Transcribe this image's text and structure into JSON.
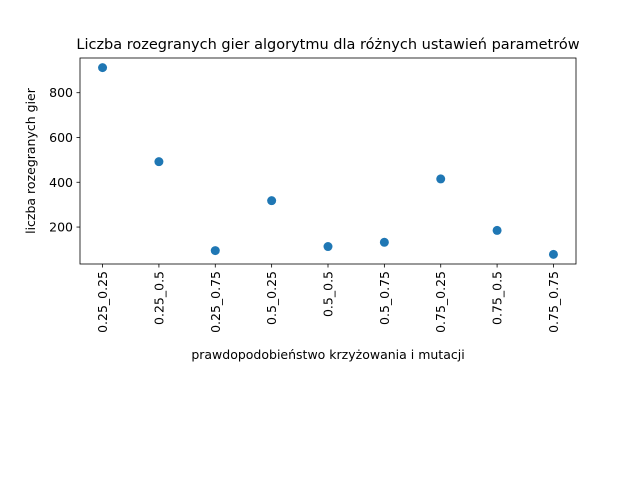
{
  "chart_data": {
    "type": "scatter",
    "title": "Liczba rozegranych gier algorytmu dla różnych ustawień parametrów",
    "xlabel": "prawdopodobieństwo krzyżowania i mutacji",
    "ylabel": "liczba rozegranych gier",
    "categories": [
      "0.25_0.25",
      "0.25_0.5",
      "0.25_0.75",
      "0.5_0.25",
      "0.5_0.5",
      "0.5_0.75",
      "0.75_0.25",
      "0.75_0.5",
      "0.75_0.75"
    ],
    "values": [
      912,
      492,
      95,
      318,
      113,
      132,
      415,
      185,
      78
    ],
    "yticks": [
      200,
      400,
      600,
      800
    ],
    "ylim": [
      35,
      955
    ],
    "grid": false,
    "color": "#1f77b4"
  }
}
